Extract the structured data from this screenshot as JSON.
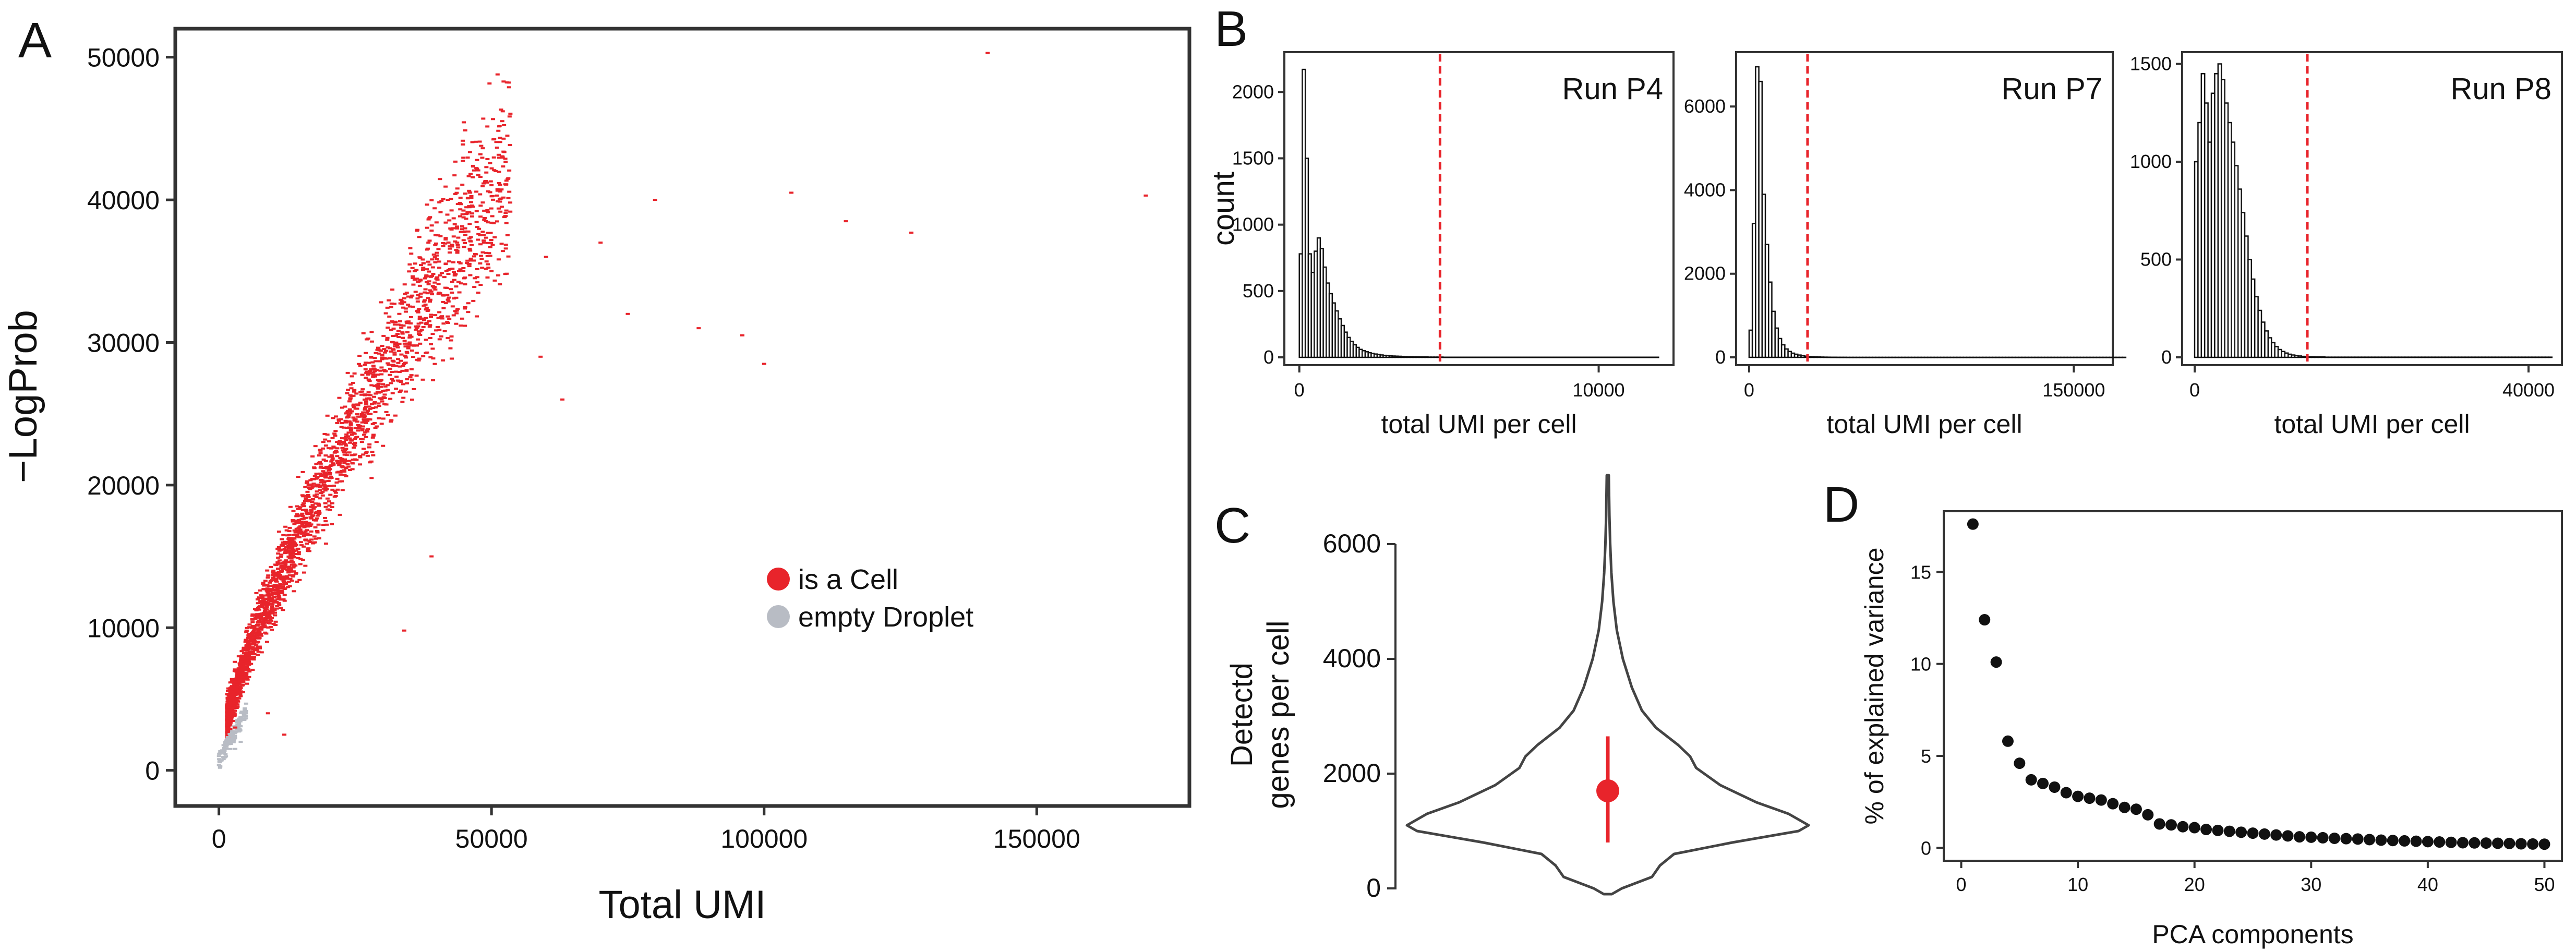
{
  "chart_data": [
    {
      "panel": "A",
      "type": "scatter",
      "title": "",
      "xlabel": "Total UMI",
      "ylabel": "−LogProb",
      "xlim": [
        -8000,
        178000
      ],
      "ylim": [
        -2500,
        52000
      ],
      "x_ticks": [
        0,
        50000,
        100000,
        150000
      ],
      "y_ticks": [
        0,
        10000,
        20000,
        30000,
        40000,
        50000
      ],
      "grid": false,
      "legend": {
        "position": "center-right"
      },
      "series": [
        {
          "name": "is a Cell",
          "color": "#e8242b",
          "points": [
            [
              3000,
              3000
            ],
            [
              5000,
              7000
            ],
            [
              8000,
              11000
            ],
            [
              10000,
              14000
            ],
            [
              13000,
              17000
            ],
            [
              17000,
              20000
            ],
            [
              22000,
              23000
            ],
            [
              28000,
              27000
            ],
            [
              35000,
              30000
            ],
            [
              42000,
              33000
            ],
            [
              50000,
              35000
            ],
            [
              60000,
              36000
            ],
            [
              70000,
              37000
            ],
            [
              80000,
              40000
            ],
            [
              105000,
              40500
            ],
            [
              115000,
              38500
            ],
            [
              127000,
              37700
            ],
            [
              141000,
              50300
            ],
            [
              170000,
              40300
            ],
            [
              9000,
              4000
            ],
            [
              12000,
              2500
            ],
            [
              34000,
              9800
            ],
            [
              39000,
              15000
            ],
            [
              46000,
              40500
            ],
            [
              51000,
              40300
            ],
            [
              63000,
              26000
            ],
            [
              75000,
              32000
            ],
            [
              88000,
              31000
            ],
            [
              100000,
              28500
            ],
            [
              96000,
              30500
            ],
            [
              59000,
              29000
            ],
            [
              42000,
              40000
            ]
          ]
        },
        {
          "name": "empty Droplet",
          "color": "#b8bcc4",
          "points": [
            [
              200,
              300
            ],
            [
              500,
              700
            ],
            [
              900,
              1200
            ],
            [
              1500,
              1800
            ],
            [
              2200,
              2500
            ],
            [
              3000,
              1500
            ],
            [
              4000,
              2000
            ]
          ]
        }
      ]
    },
    {
      "panel": "B",
      "type": "bar",
      "ylabel": "count",
      "subplots": [
        {
          "label": "Run P4",
          "xlabel": "total UMI per cell",
          "xlim": [
            -500,
            12500
          ],
          "ylim": [
            0,
            2300
          ],
          "x_ticks": [
            0,
            10000
          ],
          "y_ticks": [
            0,
            500,
            1000,
            1500,
            2000
          ],
          "cutoff": 4700,
          "bin_width": 100,
          "counts": [
            780,
            2170,
            1500,
            780,
            640,
            800,
            900,
            820,
            680,
            560,
            480,
            410,
            350,
            290,
            240,
            190,
            150,
            120,
            95,
            75,
            60,
            50,
            42,
            35,
            30,
            25,
            22,
            18,
            15,
            13,
            11,
            10,
            9,
            8,
            7,
            6,
            5,
            5,
            4,
            4,
            3,
            3,
            3,
            2,
            2,
            2,
            2,
            2,
            1,
            1,
            1,
            1,
            1,
            1,
            1,
            1,
            1,
            1,
            1,
            1,
            1,
            1,
            1,
            1,
            1,
            1,
            1,
            1,
            1,
            1,
            1,
            1,
            1,
            1,
            1,
            1,
            1,
            1,
            1,
            1,
            1,
            1,
            1,
            1,
            1,
            1,
            1,
            1,
            1,
            1,
            1,
            1,
            1,
            1,
            1,
            1,
            1,
            1,
            1,
            1,
            1,
            1,
            1,
            1,
            1,
            1,
            1,
            1,
            1,
            1,
            1,
            1,
            1,
            1,
            1,
            1,
            1,
            1,
            1,
            1
          ]
        },
        {
          "label": "Run P7",
          "xlabel": "total UMI per cell",
          "xlim": [
            -6000,
            168000
          ],
          "ylim": [
            0,
            7300
          ],
          "x_ticks": [
            0,
            150000
          ],
          "y_ticks": [
            0,
            2000,
            4000,
            6000
          ],
          "cutoff": 27000,
          "bin_width": 1500,
          "counts": [
            650,
            3200,
            6950,
            6600,
            3900,
            2700,
            1800,
            1100,
            700,
            450,
            300,
            200,
            140,
            100,
            75,
            55,
            40,
            30,
            22,
            16,
            12,
            9,
            7,
            5,
            4,
            3,
            3,
            2,
            2,
            2,
            1,
            1,
            1,
            1,
            1,
            1,
            1,
            1,
            1,
            1,
            1,
            1,
            1,
            1,
            1,
            1,
            1,
            1,
            1,
            1,
            1,
            1,
            1,
            1,
            1,
            1,
            1,
            1,
            1,
            1,
            1,
            1,
            1,
            1,
            1,
            1,
            1,
            1,
            1,
            1,
            1,
            1,
            1,
            1,
            1,
            1,
            1,
            1,
            1,
            1,
            1,
            1,
            1,
            1,
            1,
            1,
            1,
            1,
            1,
            1,
            1,
            1,
            1,
            1,
            1,
            1,
            1,
            1,
            1,
            1,
            1,
            1,
            1,
            1,
            1,
            1,
            1,
            1,
            1,
            1,
            1,
            1,
            1,
            1,
            1,
            1
          ]
        },
        {
          "label": "Run P8",
          "xlabel": "total UMI per cell",
          "xlim": [
            -1500,
            44000
          ],
          "ylim": [
            0,
            1560
          ],
          "x_ticks": [
            0,
            40000
          ],
          "y_ticks": [
            0,
            500,
            1000,
            1500
          ],
          "cutoff": 13500,
          "bin_width": 400,
          "counts": [
            1000,
            1200,
            1450,
            1300,
            1100,
            1350,
            1450,
            1500,
            1420,
            1300,
            1200,
            1100,
            980,
            860,
            740,
            620,
            500,
            400,
            310,
            240,
            180,
            135,
            100,
            75,
            55,
            40,
            30,
            22,
            16,
            12,
            9,
            7,
            5,
            4,
            3,
            3,
            2,
            2,
            2,
            1,
            1,
            1,
            1,
            1,
            1,
            1,
            1,
            1,
            1,
            1,
            1,
            1,
            1,
            1,
            1,
            1,
            1,
            1,
            1,
            1,
            1,
            1,
            1,
            1,
            1,
            1,
            1,
            1,
            1,
            1,
            1,
            1,
            1,
            1,
            1,
            1,
            1,
            1,
            1,
            1,
            1,
            1,
            1,
            1,
            1,
            1,
            1,
            1,
            1,
            1,
            1,
            1,
            1,
            1,
            1,
            1,
            1,
            1,
            1,
            1,
            1,
            1,
            1,
            1,
            1,
            1,
            1
          ]
        }
      ]
    },
    {
      "panel": "C",
      "type": "violin",
      "ylabel_lines": [
        "Detectd",
        "genes per cell"
      ],
      "ylim": [
        0,
        7200
      ],
      "y_ticks": [
        0,
        2000,
        4000,
        6000
      ],
      "median": 1700,
      "q_low": 800,
      "q_high": 2650,
      "marker_color": "#e8242b",
      "density": [
        [
          -100,
          0.02
        ],
        [
          0,
          0.07
        ],
        [
          200,
          0.22
        ],
        [
          400,
          0.26
        ],
        [
          600,
          0.33
        ],
        [
          800,
          0.62
        ],
        [
          1000,
          0.95
        ],
        [
          1100,
          1.0
        ],
        [
          1300,
          0.9
        ],
        [
          1500,
          0.74
        ],
        [
          1800,
          0.56
        ],
        [
          2100,
          0.44
        ],
        [
          2300,
          0.41
        ],
        [
          2500,
          0.35
        ],
        [
          2800,
          0.24
        ],
        [
          3100,
          0.17
        ],
        [
          3500,
          0.12
        ],
        [
          4000,
          0.075
        ],
        [
          4500,
          0.045
        ],
        [
          5000,
          0.028
        ],
        [
          5500,
          0.018
        ],
        [
          6000,
          0.012
        ],
        [
          6500,
          0.008
        ],
        [
          7200,
          0.005
        ]
      ]
    },
    {
      "panel": "D",
      "type": "scatter",
      "xlabel": "PCA components",
      "ylabel": "% of explained variance",
      "xlim": [
        -1.5,
        51.5
      ],
      "ylim": [
        -0.7,
        18.3
      ],
      "x_ticks": [
        0,
        10,
        20,
        30,
        40,
        50
      ],
      "y_ticks": [
        0,
        5,
        10,
        15
      ],
      "color": "#111111",
      "x": [
        1,
        2,
        3,
        4,
        5,
        6,
        7,
        8,
        9,
        10,
        11,
        12,
        13,
        14,
        15,
        16,
        17,
        18,
        19,
        20,
        21,
        22,
        23,
        24,
        25,
        26,
        27,
        28,
        29,
        30,
        31,
        32,
        33,
        34,
        35,
        36,
        37,
        38,
        39,
        40,
        41,
        42,
        43,
        44,
        45,
        46,
        47,
        48,
        49,
        50
      ],
      "values": [
        17.6,
        12.4,
        10.1,
        5.8,
        4.6,
        3.7,
        3.5,
        3.3,
        3.0,
        2.8,
        2.7,
        2.6,
        2.4,
        2.2,
        2.1,
        1.8,
        1.3,
        1.25,
        1.15,
        1.1,
        1.0,
        0.95,
        0.9,
        0.85,
        0.8,
        0.75,
        0.7,
        0.65,
        0.6,
        0.58,
        0.55,
        0.52,
        0.5,
        0.48,
        0.45,
        0.42,
        0.4,
        0.38,
        0.36,
        0.34,
        0.32,
        0.3,
        0.28,
        0.27,
        0.26,
        0.25,
        0.24,
        0.22,
        0.21,
        0.2
      ]
    }
  ]
}
